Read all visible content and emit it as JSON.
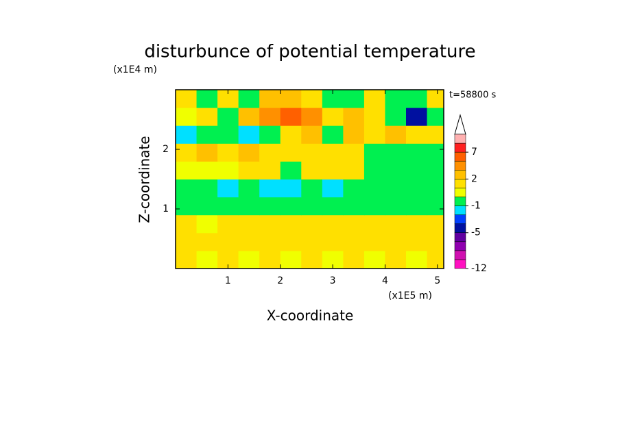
{
  "chart_data": {
    "type": "contour",
    "title": "disturbunce of potential temperature",
    "y_unit": "(x1E4 m)",
    "x_unit": "(x1E5 m)",
    "x_label": "X-coordinate",
    "y_label": "Z-coordinate",
    "annotation": "t=58800 s",
    "xlim": [
      0,
      5.12
    ],
    "ylim": [
      0,
      3
    ],
    "xticks": [
      1,
      2,
      3,
      4,
      5
    ],
    "yticks": [
      1,
      2
    ],
    "x": [
      0.2,
      0.6,
      1.0,
      1.4,
      1.8,
      2.2,
      2.6,
      3.0,
      3.4,
      3.8,
      4.2,
      4.6,
      5.0
    ],
    "y": [
      0.15,
      0.45,
      0.75,
      1.05,
      1.35,
      1.65,
      1.95,
      2.25,
      2.55,
      2.85
    ],
    "z": [
      [
        1,
        0.5,
        1,
        0,
        1,
        0.5,
        1,
        0.5,
        1,
        0.5,
        1,
        0.5,
        1
      ],
      [
        1,
        1,
        1,
        1,
        1,
        1,
        1,
        1,
        1,
        1,
        1,
        1,
        1
      ],
      [
        1,
        0.5,
        1,
        1,
        1,
        1,
        1,
        1,
        1,
        1,
        1,
        1,
        1
      ],
      [
        -0.5,
        -0.5,
        -0.5,
        -0.5,
        -0.5,
        -0.5,
        -0.5,
        -0.5,
        -0.5,
        -0.5,
        -0.5,
        -0.5,
        -0.5
      ],
      [
        -0.5,
        -0.5,
        -2,
        -0.5,
        -2,
        -2,
        -0.5,
        -2,
        -0.5,
        -0.5,
        -0.5,
        -0.5,
        -0.5
      ],
      [
        0.5,
        0.5,
        0.5,
        1,
        1,
        -0.5,
        1,
        1,
        1,
        -0.5,
        -0.5,
        -0.5,
        -0.5
      ],
      [
        1.5,
        2.5,
        1.5,
        2.5,
        1.5,
        1.5,
        1.5,
        1,
        1,
        -0.5,
        -0.5,
        -0.5,
        -0.5
      ],
      [
        -2,
        -0.5,
        -0.5,
        -2,
        -0.5,
        1,
        2.5,
        -0.5,
        2.5,
        1,
        2.5,
        1,
        1
      ],
      [
        0.5,
        1,
        -0.5,
        2.5,
        4,
        6,
        4,
        1,
        2.5,
        1,
        -0.5,
        -5,
        -0.5
      ],
      [
        1,
        -0.5,
        1,
        -0.5,
        2.5,
        2.5,
        1,
        -0.5,
        -0.5,
        1,
        -0.5,
        -0.5,
        1
      ]
    ],
    "colorbar": {
      "levels": [
        -12,
        -10,
        -8,
        -6,
        -5,
        -4,
        -3,
        -1,
        0,
        1,
        2,
        3,
        5,
        7,
        9,
        11
      ],
      "colors": [
        "#ff10c0",
        "#d010b0",
        "#9000b0",
        "#6000a0",
        "#0010a0",
        "#0040ff",
        "#00e0ff",
        "#00f050",
        "#f0ff00",
        "#ffe000",
        "#ffc000",
        "#ff9000",
        "#ff6000",
        "#ff2020",
        "#ffb0b0"
      ],
      "ticks": [
        -12,
        -5,
        -1,
        2,
        7
      ]
    }
  }
}
